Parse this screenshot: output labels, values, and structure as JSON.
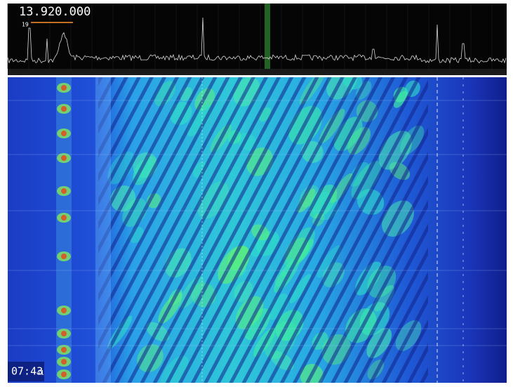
{
  "frequency": {
    "main": "13.920.000",
    "small": "19"
  },
  "clock": {
    "time": "07:43",
    "seconds": "41"
  }
}
